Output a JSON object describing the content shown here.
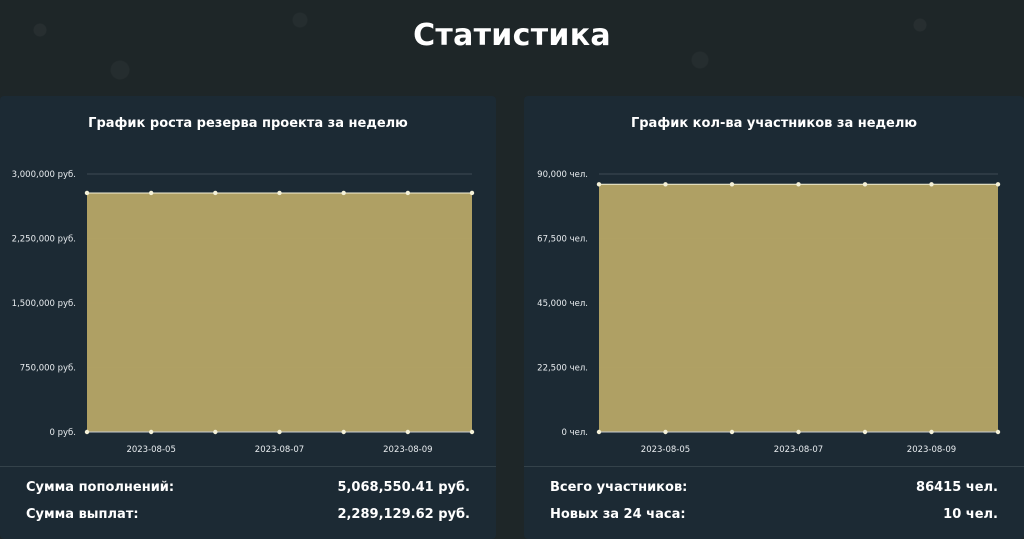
{
  "page": {
    "title": "Статистика"
  },
  "colors": {
    "fill": "#b3a365",
    "point": "#f4f1d8",
    "grid": "#9aa07a",
    "axis": "#c8ccd0",
    "card_bg": "#1c2a34"
  },
  "chart_data": [
    {
      "type": "area",
      "title": "График роста резерва проекта за неделю",
      "x": [
        "2023-08-04",
        "2023-08-05",
        "2023-08-06",
        "2023-08-07",
        "2023-08-08",
        "2023-08-09",
        "2023-08-10"
      ],
      "x_tick_labels": [
        "2023-08-05",
        "2023-08-07",
        "2023-08-09"
      ],
      "series": [
        {
          "values": [
            2779421,
            2779421,
            2779421,
            2779421,
            2779421,
            2779421,
            2779421
          ]
        }
      ],
      "y_ticks": [
        0,
        750000,
        1500000,
        2250000,
        3000000
      ],
      "y_tick_labels": [
        "0 руб.",
        "750,000 руб.",
        "1,500,000 руб.",
        "2,250,000 руб.",
        "3,000,000 руб."
      ],
      "ylim": [
        0,
        3000000
      ],
      "grid": true,
      "legend": "none"
    },
    {
      "type": "area",
      "title": "График кол-ва участников за неделю",
      "x": [
        "2023-08-04",
        "2023-08-05",
        "2023-08-06",
        "2023-08-07",
        "2023-08-08",
        "2023-08-09",
        "2023-08-10"
      ],
      "x_tick_labels": [
        "2023-08-05",
        "2023-08-07",
        "2023-08-09"
      ],
      "series": [
        {
          "values": [
            86415,
            86415,
            86415,
            86415,
            86415,
            86415,
            86415
          ]
        }
      ],
      "y_ticks": [
        0,
        22500,
        45000,
        67500,
        90000
      ],
      "y_tick_labels": [
        "0 чел.",
        "22,500 чел.",
        "45,000 чел.",
        "67,500 чел.",
        "90,000 чел."
      ],
      "ylim": [
        0,
        90000
      ],
      "grid": true,
      "legend": "none"
    }
  ],
  "cards": {
    "left": {
      "stats": [
        {
          "label": "Сумма пополнений:",
          "value": "5,068,550.41 руб."
        },
        {
          "label": "Сумма выплат:",
          "value": "2,289,129.62 руб."
        }
      ]
    },
    "right": {
      "stats": [
        {
          "label": "Всего участников:",
          "value": "86415 чел."
        },
        {
          "label": "Новых за 24 часа:",
          "value": "10 чел."
        }
      ]
    }
  }
}
